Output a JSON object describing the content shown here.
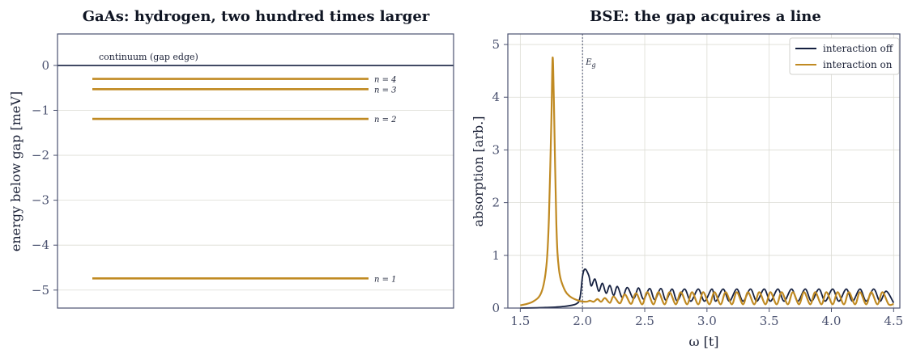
{
  "colors": {
    "navy": "#152040",
    "gold": "#c08a22",
    "grid": "#dcdcd4",
    "frame": "#4b5270"
  },
  "chart_data": [
    {
      "type": "line",
      "title": "GaAs: hydrogen, two hundred times larger",
      "ylabel": "energy below gap  [meV]",
      "xlabel": "",
      "ylim": [
        -5.4,
        0.7
      ],
      "yticks": [
        0,
        -1,
        -2,
        -3,
        -4,
        -5
      ],
      "ytick_labels": [
        "0",
        "−1",
        "−2",
        "−3",
        "−4",
        "−5"
      ],
      "grid": true,
      "continuum": {
        "value": 0,
        "label": "continuum (gap edge)"
      },
      "levels": [
        {
          "n": 1,
          "energy": -4.74,
          "label": "n = 1"
        },
        {
          "n": 2,
          "energy": -1.19,
          "label": "n = 2"
        },
        {
          "n": 3,
          "energy": -0.53,
          "label": "n = 3"
        },
        {
          "n": 4,
          "energy": -0.3,
          "label": "n = 4"
        }
      ]
    },
    {
      "type": "line",
      "title": "BSE: the gap acquires a line",
      "xlabel": "ω  [t]",
      "ylabel": "absorption  [arb.]",
      "xlim": [
        1.4,
        4.55
      ],
      "ylim": [
        0,
        5.2
      ],
      "xticks": [
        1.5,
        2.0,
        2.5,
        3.0,
        3.5,
        4.0,
        4.5
      ],
      "xtick_labels": [
        "1.5",
        "2.0",
        "2.5",
        "3.0",
        "3.5",
        "4.0",
        "4.5"
      ],
      "yticks": [
        0,
        1,
        2,
        3,
        4,
        5
      ],
      "ytick_labels": [
        "0",
        "1",
        "2",
        "3",
        "4",
        "5"
      ],
      "grid": true,
      "legend_position": "top-right",
      "vline": {
        "x": 2.0,
        "label": "E_g"
      },
      "series": [
        {
          "name": "interaction off",
          "color": "#152040",
          "x": [
            1.5,
            1.7,
            1.85,
            1.95,
            1.98,
            2.0,
            2.02,
            2.05,
            2.07,
            2.1,
            2.13,
            2.16,
            2.19,
            2.22,
            2.25,
            2.28,
            2.32,
            2.36,
            2.41,
            2.45,
            2.49,
            2.54,
            2.58,
            2.63,
            2.67,
            2.72,
            2.76,
            2.82,
            2.87,
            2.93,
            2.98,
            3.04,
            3.07,
            3.13,
            3.18,
            3.24,
            3.29,
            3.35,
            3.4,
            3.46,
            3.51,
            3.57,
            3.62,
            3.68,
            3.73,
            3.79,
            3.84,
            3.9,
            3.95,
            4.01,
            4.06,
            4.12,
            4.17,
            4.23,
            4.28,
            4.34,
            4.39,
            4.44,
            4.5
          ],
          "y": [
            0.0,
            0.01,
            0.03,
            0.08,
            0.2,
            0.6,
            0.74,
            0.62,
            0.42,
            0.55,
            0.32,
            0.47,
            0.28,
            0.43,
            0.24,
            0.41,
            0.2,
            0.39,
            0.18,
            0.38,
            0.17,
            0.37,
            0.16,
            0.37,
            0.15,
            0.36,
            0.14,
            0.36,
            0.13,
            0.36,
            0.13,
            0.36,
            0.13,
            0.36,
            0.13,
            0.36,
            0.13,
            0.36,
            0.13,
            0.36,
            0.13,
            0.36,
            0.13,
            0.36,
            0.13,
            0.36,
            0.13,
            0.36,
            0.13,
            0.36,
            0.13,
            0.36,
            0.13,
            0.36,
            0.13,
            0.36,
            0.13,
            0.32,
            0.1
          ]
        },
        {
          "name": "interaction on",
          "color": "#c08a22",
          "x": [
            1.5,
            1.6,
            1.67,
            1.71,
            1.73,
            1.75,
            1.76,
            1.77,
            1.79,
            1.81,
            1.85,
            1.9,
            1.97,
            2.03,
            2.06,
            2.09,
            2.12,
            2.15,
            2.18,
            2.22,
            2.25,
            2.3,
            2.34,
            2.39,
            2.43,
            2.48,
            2.52,
            2.57,
            2.61,
            2.66,
            2.7,
            2.75,
            2.79,
            2.84,
            2.88,
            2.93,
            2.97,
            3.02,
            3.06,
            3.11,
            3.15,
            3.2,
            3.24,
            3.29,
            3.33,
            3.38,
            3.42,
            3.47,
            3.51,
            3.56,
            3.6,
            3.65,
            3.69,
            3.74,
            3.78,
            3.83,
            3.87,
            3.92,
            3.96,
            4.01,
            4.05,
            4.1,
            4.14,
            4.19,
            4.23,
            4.28,
            4.32,
            4.37,
            4.41,
            4.46,
            4.5
          ],
          "y": [
            0.05,
            0.12,
            0.3,
            0.8,
            1.7,
            3.6,
            4.75,
            3.9,
            1.6,
            0.75,
            0.38,
            0.22,
            0.14,
            0.12,
            0.14,
            0.12,
            0.17,
            0.12,
            0.19,
            0.1,
            0.22,
            0.09,
            0.26,
            0.08,
            0.28,
            0.07,
            0.3,
            0.07,
            0.3,
            0.07,
            0.3,
            0.07,
            0.3,
            0.07,
            0.3,
            0.07,
            0.3,
            0.07,
            0.3,
            0.07,
            0.3,
            0.07,
            0.3,
            0.07,
            0.3,
            0.07,
            0.3,
            0.07,
            0.3,
            0.07,
            0.3,
            0.07,
            0.3,
            0.07,
            0.3,
            0.07,
            0.3,
            0.07,
            0.3,
            0.07,
            0.3,
            0.07,
            0.3,
            0.07,
            0.3,
            0.07,
            0.3,
            0.07,
            0.3,
            0.07,
            0.08
          ]
        }
      ]
    }
  ]
}
